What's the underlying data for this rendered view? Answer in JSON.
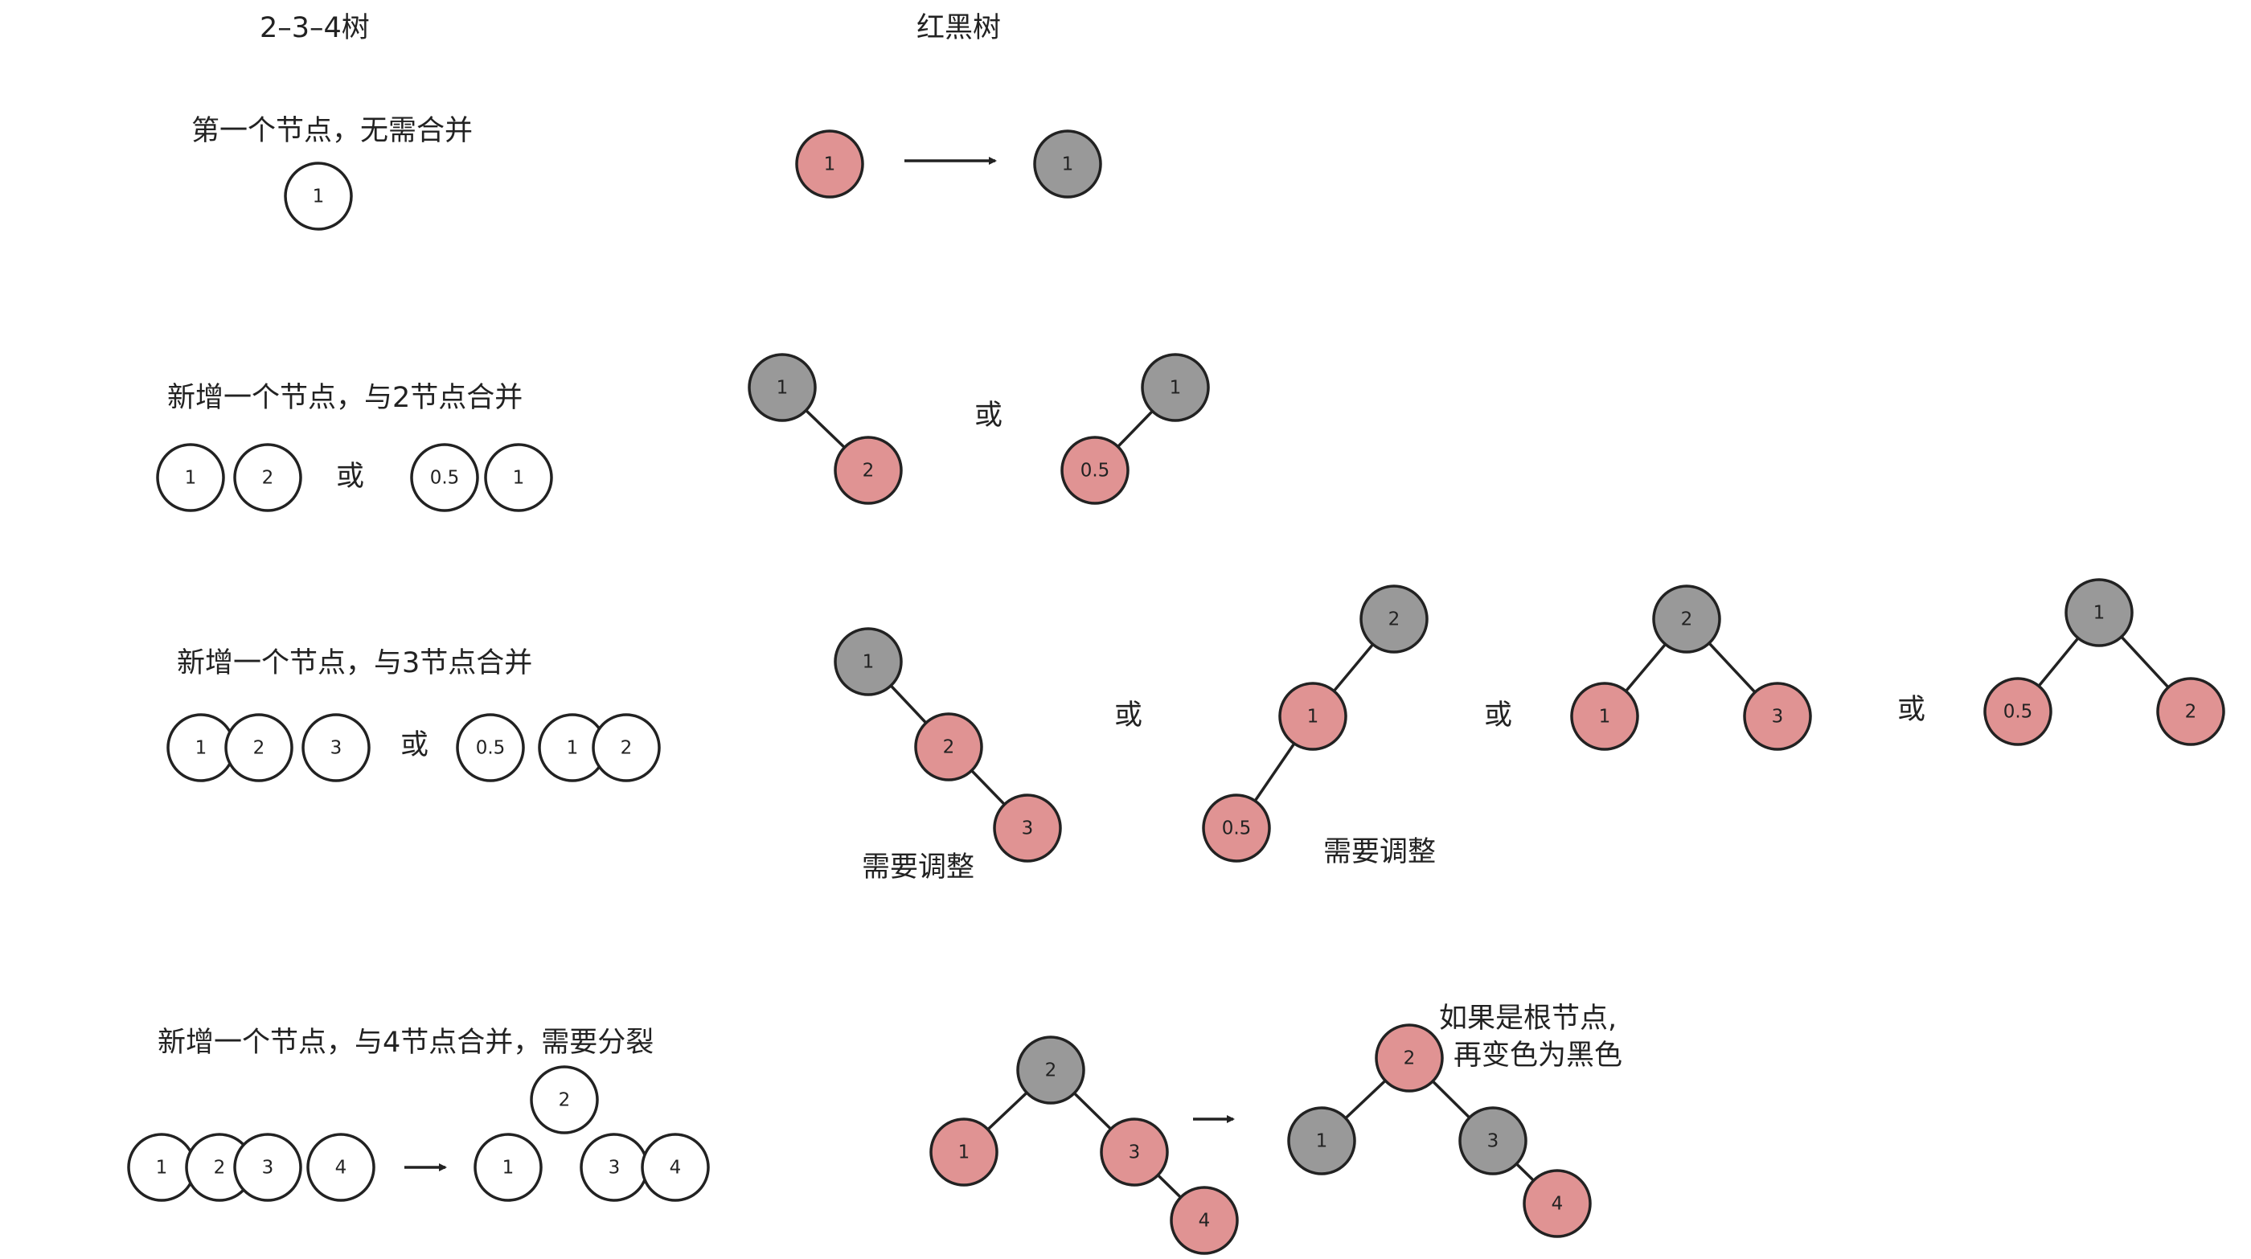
{
  "titles": {
    "left": "2–3–4树",
    "right": "红黑树"
  },
  "sections": [
    {
      "label": "第一个节点，无需合并"
    },
    {
      "label": "新增一个节点，与2节点合并"
    },
    {
      "label": "新增一个节点，与3节点合并"
    },
    {
      "label": "新增一个节点，与4节点合并，需要分裂"
    }
  ],
  "or_label": "或",
  "adjust_label": "需要调整",
  "root_note": {
    "line1": "如果是根节点,",
    "line2": "再变色为黑色"
  },
  "colors": {
    "red": "#e09393",
    "black": "#999999",
    "white": "#ffffff",
    "stroke": "#222222",
    "text": "#222222"
  },
  "node_values": [
    "1",
    "2",
    "3",
    "4",
    "0.5"
  ]
}
